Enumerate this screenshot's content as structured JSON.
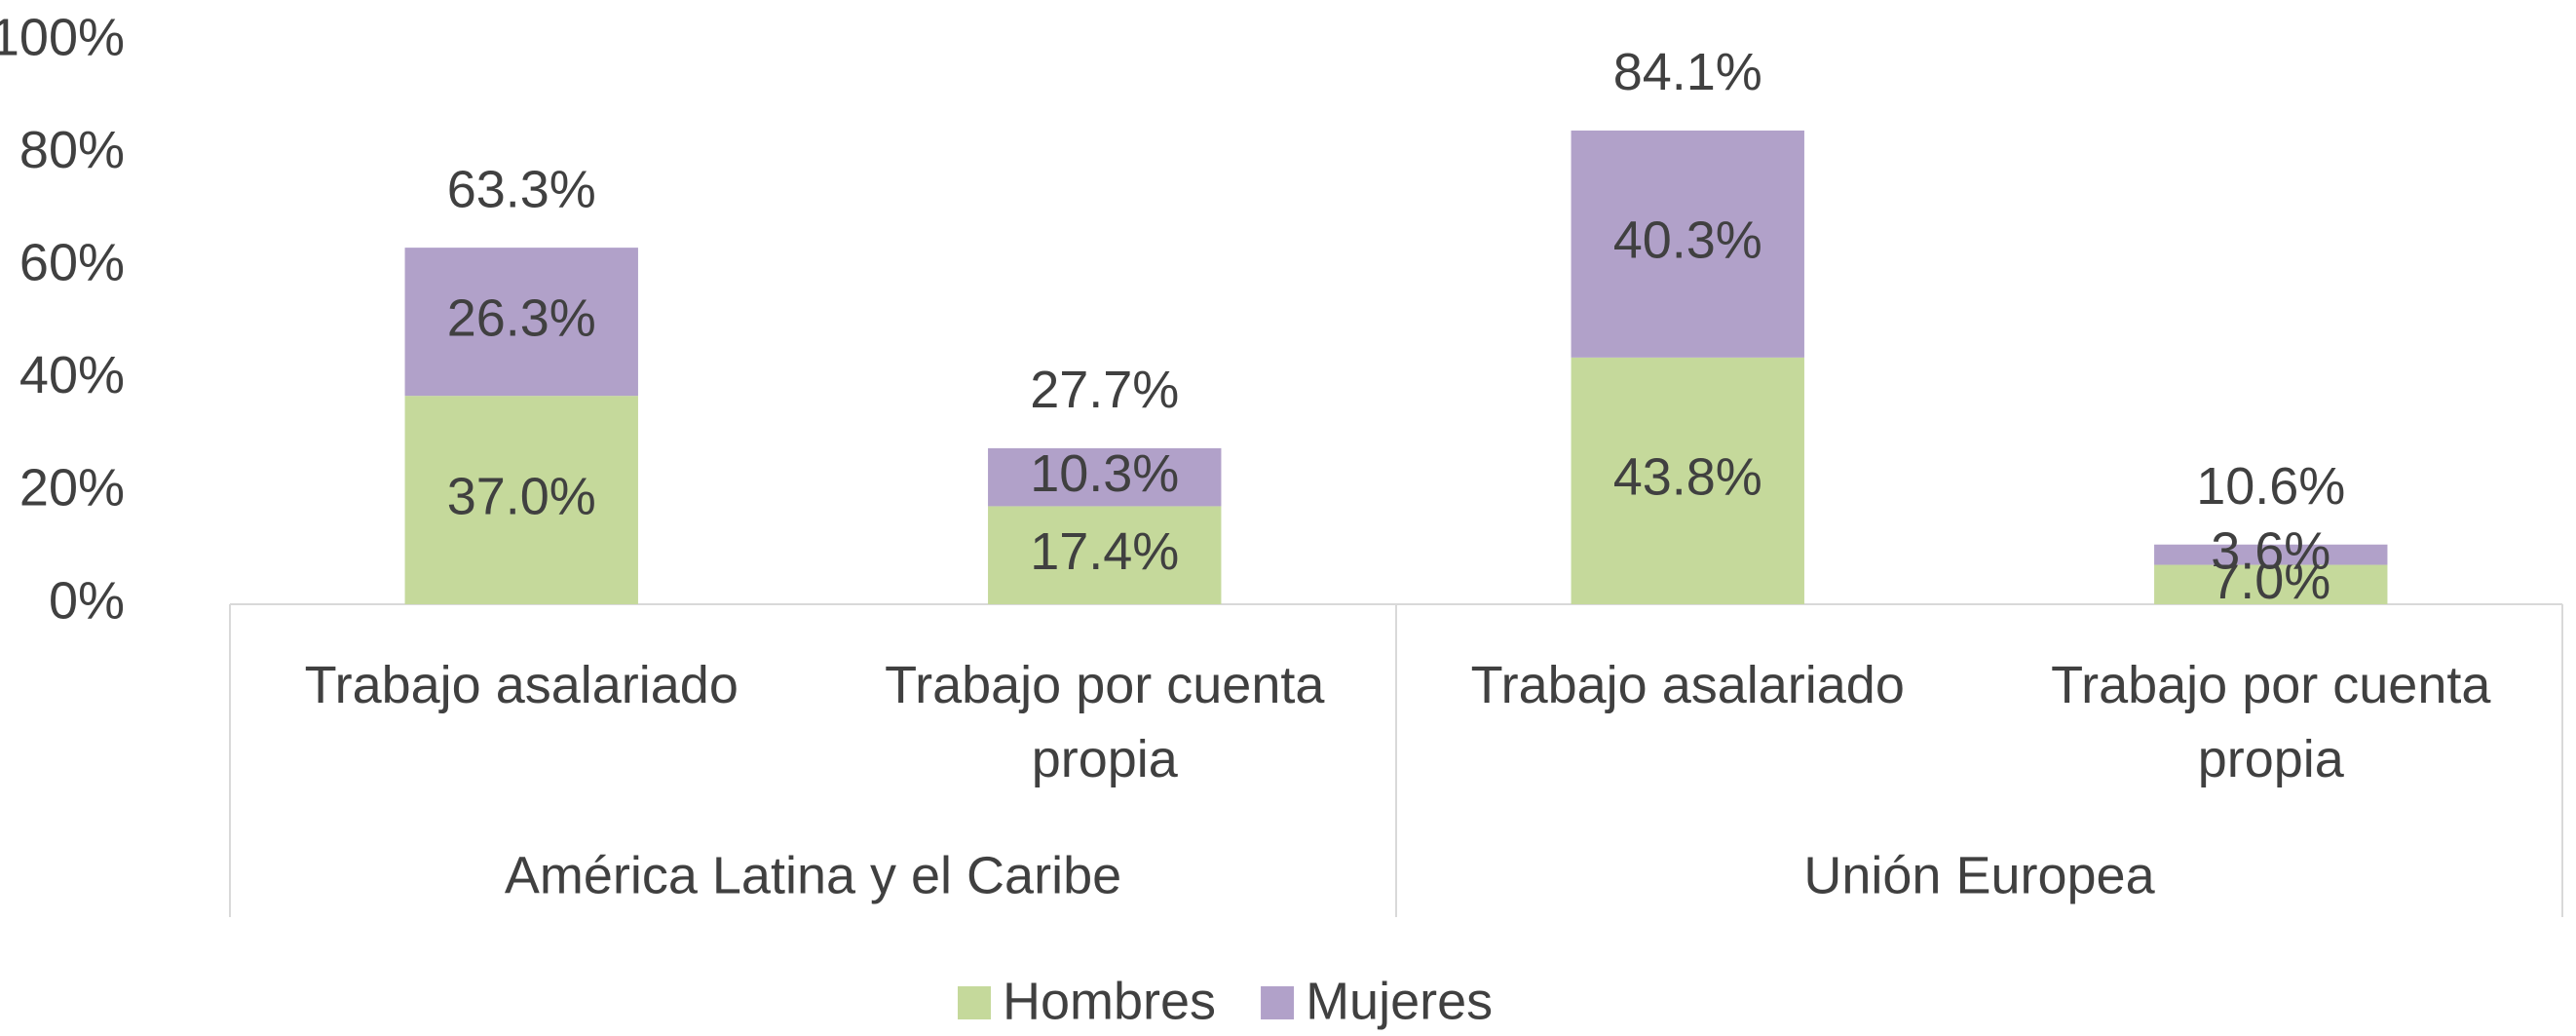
{
  "chart_data": {
    "type": "stacked_bar",
    "groups": [
      "América Latina y el Caribe",
      "Unión Europea"
    ],
    "categories": [
      "Trabajo asalariado",
      "Trabajo por cuenta propia",
      "Trabajo asalariado",
      "Trabajo por cuenta propia"
    ],
    "series": [
      {
        "name": "Hombres",
        "color": "#c5d99b",
        "values": [
          37.0,
          17.4,
          43.8,
          7.0
        ],
        "value_labels": [
          "37.0%",
          "17.4%",
          "43.8%",
          "7.0%"
        ]
      },
      {
        "name": "Mujeres",
        "color": "#b1a1c9",
        "values": [
          26.3,
          10.3,
          40.3,
          3.6
        ],
        "value_labels": [
          "26.3%",
          "10.3%",
          "40.3%",
          "3.6%"
        ]
      }
    ],
    "totals": [
      63.3,
      27.7,
      84.1,
      10.6
    ],
    "total_labels": [
      "63.3%",
      "27.7%",
      "84.1%",
      "10.6%"
    ],
    "ylim": [
      0,
      100
    ],
    "yticks": [
      {
        "value": 0,
        "label": "0%"
      },
      {
        "value": 20,
        "label": "20%"
      },
      {
        "value": 40,
        "label": "40%"
      },
      {
        "value": 60,
        "label": "60%"
      },
      {
        "value": 80,
        "label": "80%"
      },
      {
        "value": 100,
        "label": "100%"
      }
    ],
    "grid": false,
    "legend": "bottom"
  }
}
